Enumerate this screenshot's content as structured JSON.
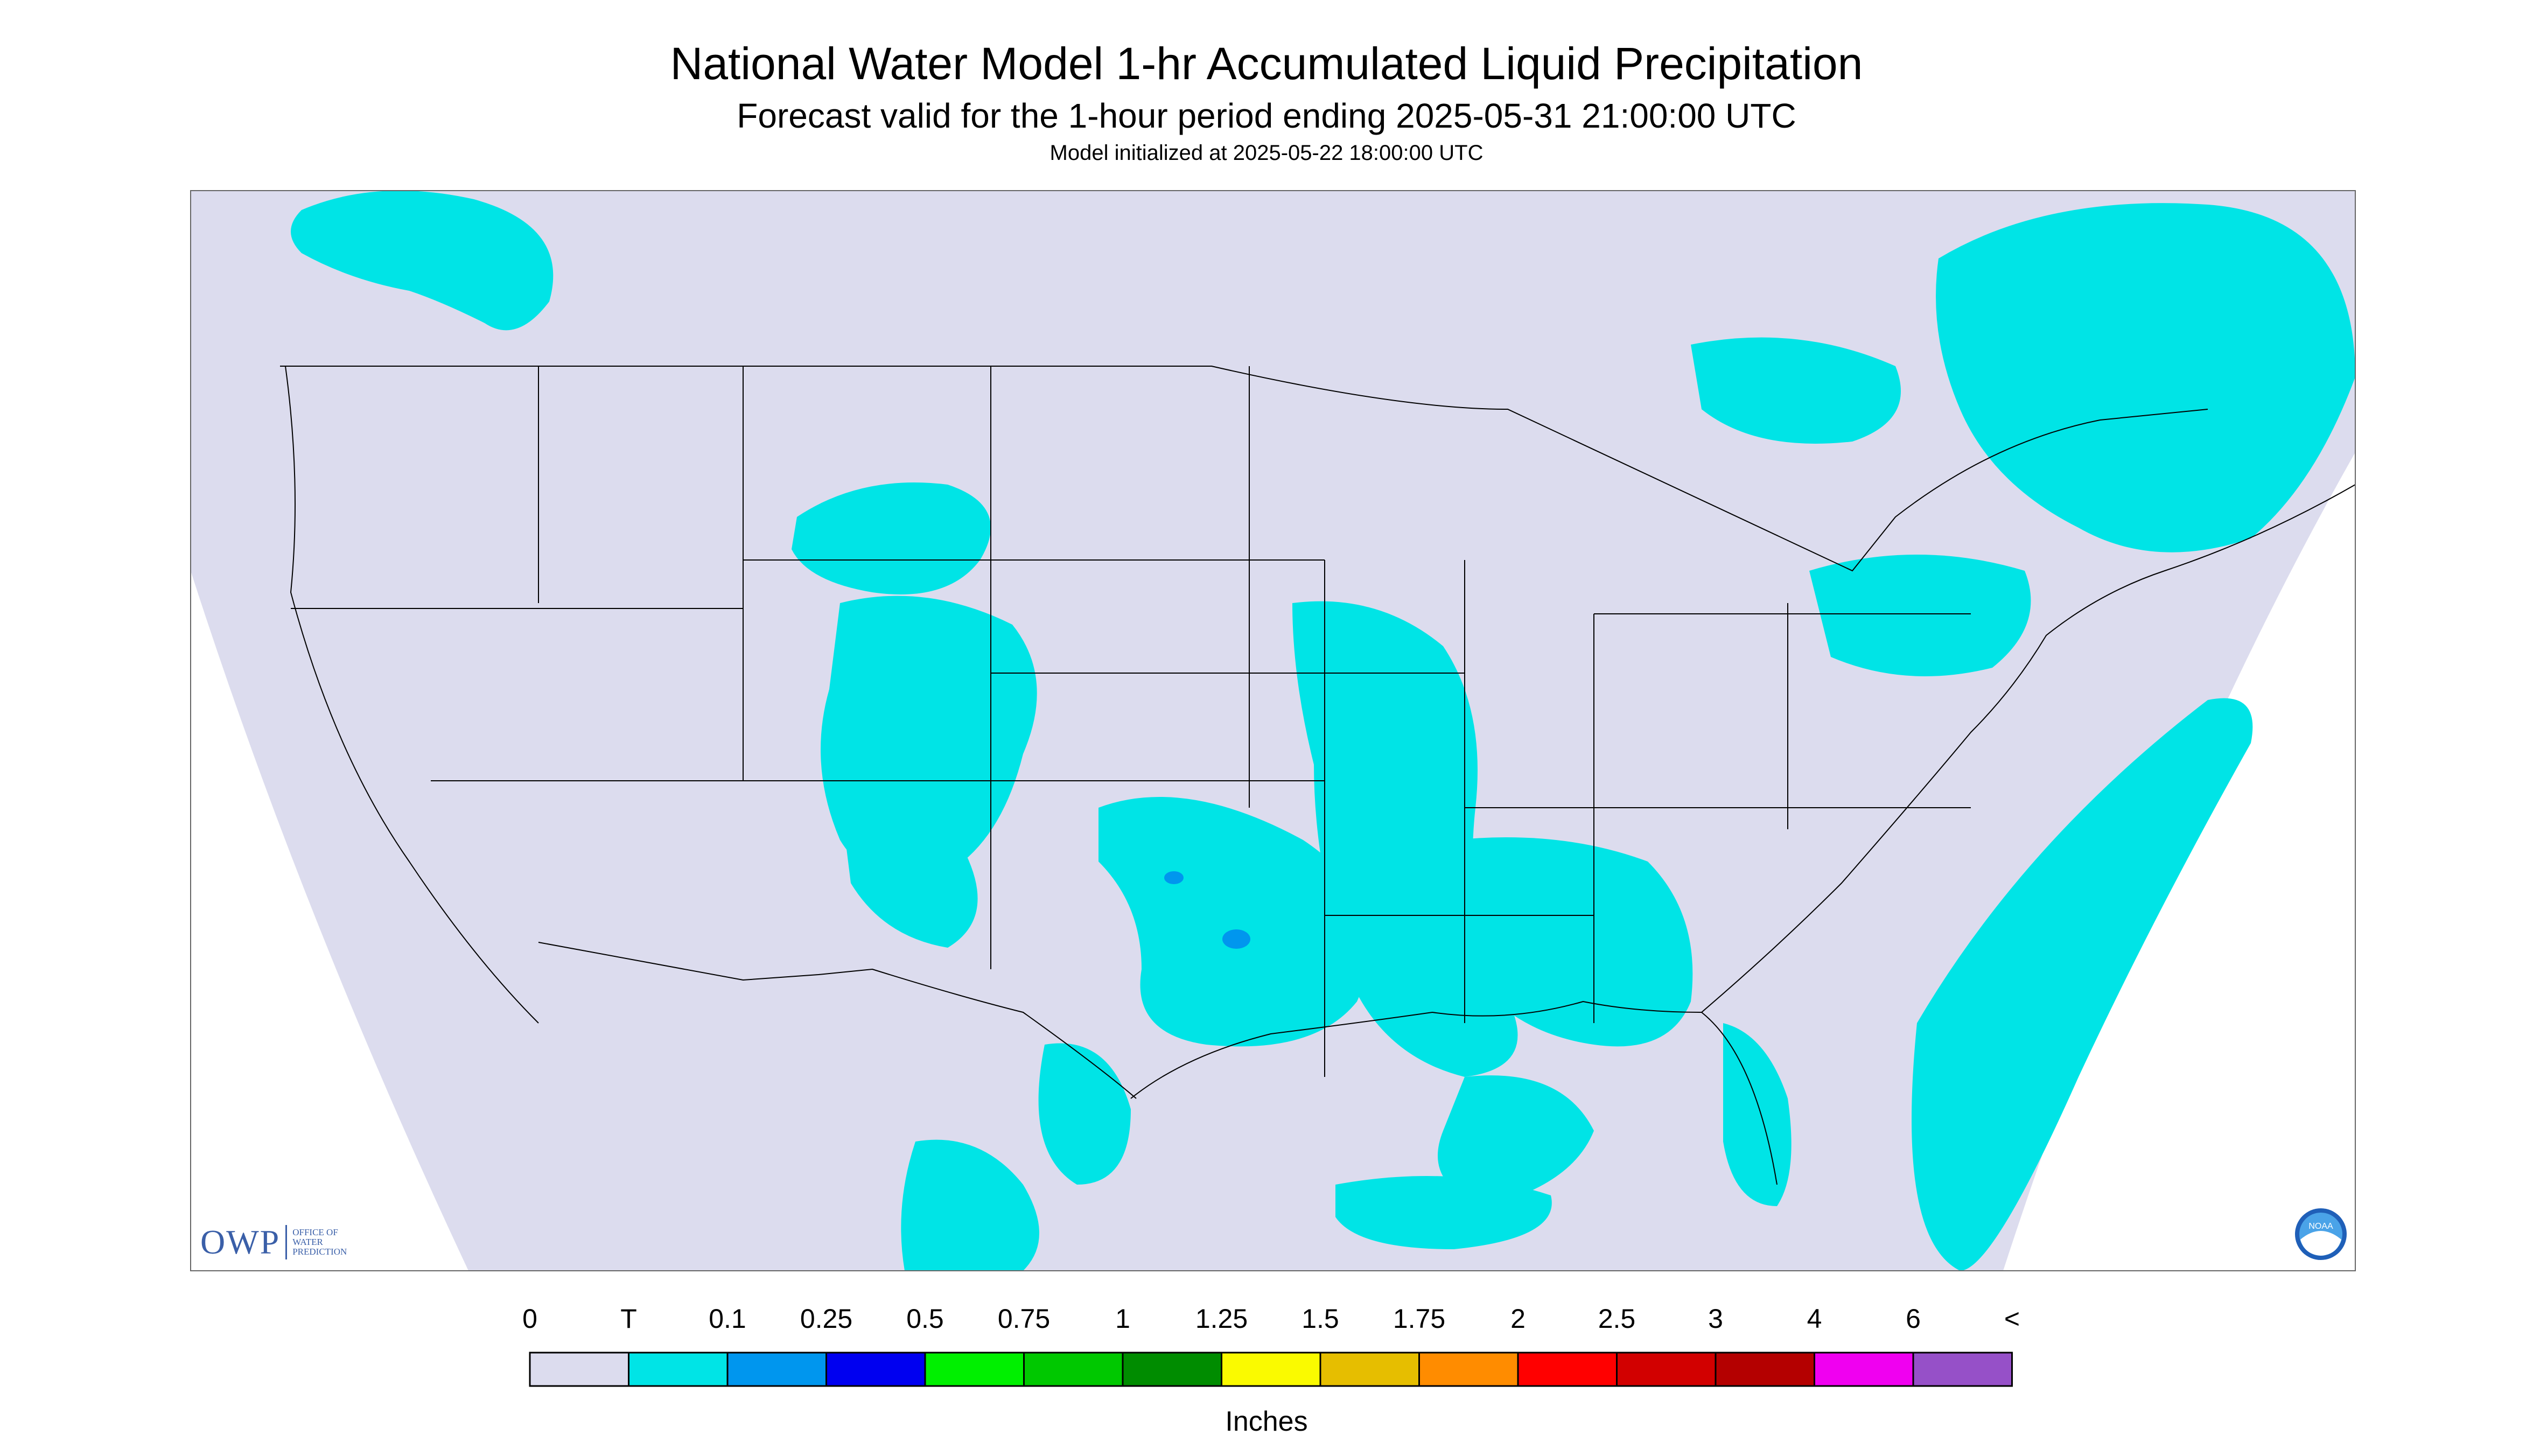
{
  "header": {
    "title": "National Water Model 1-hr Accumulated Liquid Precipitation",
    "subtitle": "Forecast valid for the 1-hour period ending 2025-05-31 21:00:00 UTC",
    "init": "Model initialized at 2025-05-22 18:00:00 UTC"
  },
  "colorbar": {
    "labels": [
      "0",
      "T",
      "0.1",
      "0.25",
      "0.5",
      "0.75",
      "1",
      "1.25",
      "1.5",
      "1.75",
      "2",
      "2.5",
      "3",
      "4",
      "6",
      "<"
    ],
    "colors": [
      "#dcdcee",
      "#00e4e6",
      "#0096ee",
      "#0000f0",
      "#00f000",
      "#00c800",
      "#008c00",
      "#fafa00",
      "#e6be00",
      "#ff8c00",
      "#ff0000",
      "#d20000",
      "#b40000",
      "#f000f0",
      "#9650c8"
    ],
    "units": "Inches"
  },
  "map": {
    "background": "#dcdcee",
    "precip_trace_color": "#00e4e6",
    "precip_light_color": "#0096ee",
    "border_color": "#000000"
  },
  "logos": {
    "owp_mark": "OWP",
    "owp_text": [
      "OFFICE OF",
      "WATER",
      "PREDICTION"
    ],
    "noaa_text": "NOAA"
  }
}
